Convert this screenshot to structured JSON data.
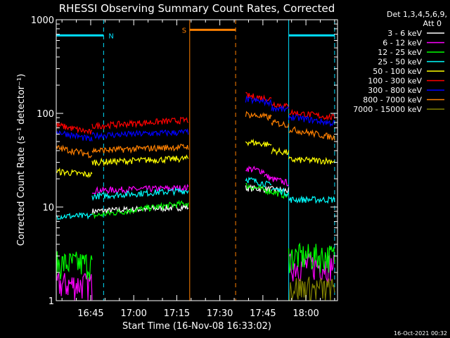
{
  "chart_data": {
    "type": "line",
    "title": "RHESSI Observing Summary Count Rates, Corrected",
    "xlabel": "Start Time (16-Nov-08 16:33:02)",
    "ylabel": "Corrected Count Rate (s⁻¹ detector⁻¹)",
    "x_range_minutes": [
      0,
      98
    ],
    "y_log": true,
    "ylim": [
      1,
      1000
    ],
    "x_ticks": [
      {
        "label": "16:45",
        "minute": 12
      },
      {
        "label": "17:00",
        "minute": 27
      },
      {
        "label": "17:15",
        "minute": 42
      },
      {
        "label": "17:30",
        "minute": 57
      },
      {
        "label": "17:45",
        "minute": 72
      },
      {
        "label": "18:00",
        "minute": 87
      }
    ],
    "y_ticks": [
      {
        "label": "1",
        "value": 1
      },
      {
        "label": "10",
        "value": 10
      },
      {
        "label": "100",
        "value": 100
      },
      {
        "label": "1000",
        "value": 1000
      }
    ],
    "legend_header": [
      "Det 1,3,4,5,6,9,",
      "Att 0"
    ],
    "footer_date": "16-Oct-2021 00:32",
    "intervals": [
      {
        "label": "N",
        "color": "#00e0ff",
        "level": 680,
        "segments": [
          [
            0,
            16.5
          ],
          [
            81,
            97
          ]
        ],
        "boundaries": [
          16.5,
          81,
          97
        ],
        "boundary_style": [
          "dashed",
          "solid",
          "dashed"
        ]
      },
      {
        "label": "S",
        "color": "#ff8000",
        "level": 780,
        "segments": [
          [
            46.5,
            62.5
          ]
        ],
        "boundaries": [
          46.5,
          62.5
        ],
        "boundary_style": [
          "solid",
          "dashed"
        ]
      }
    ],
    "gap": [
      46.5,
      66
    ],
    "series": [
      {
        "name": "3 - 6 keV",
        "color": "#ffffff",
        "shape": [
          {
            "range": [
              0,
              12.5
            ],
            "hidden": true
          },
          {
            "range": [
              12.5,
              46
            ],
            "start": 9,
            "end": 10
          },
          {
            "range": [
              66,
              81
            ],
            "start": 16,
            "end": 15
          },
          {
            "range": [
              81,
              97
            ],
            "hidden": true
          }
        ]
      },
      {
        "name": "6 - 12 keV",
        "color": "#ff00ff",
        "shape": [
          {
            "range": [
              0,
              12.5
            ],
            "start": 1.5,
            "end": 1.5
          },
          {
            "range": [
              12.5,
              46
            ],
            "start": 15,
            "end": 16
          },
          {
            "range": [
              66,
              72.5
            ],
            "start": 26,
            "end": 24
          },
          {
            "range": [
              72.5,
              75
            ],
            "start": 22,
            "end": 20
          },
          {
            "range": [
              75,
              81
            ],
            "start": 20,
            "end": 18
          },
          {
            "range": [
              81,
              97
            ],
            "start": 2.4,
            "end": 2.4
          }
        ]
      },
      {
        "name": "12 - 25 keV",
        "color": "#00ff00",
        "shape": [
          {
            "range": [
              0,
              12.5
            ],
            "start": 2.5,
            "end": 2.5
          },
          {
            "range": [
              12.5,
              46
            ],
            "start": 8,
            "end": 11
          },
          {
            "range": [
              66,
              81
            ],
            "start": 17,
            "end": 13
          },
          {
            "range": [
              81,
              97
            ],
            "start": 3,
            "end": 3
          }
        ]
      },
      {
        "name": "25 - 50 keV",
        "color": "#00ffff",
        "shape": [
          {
            "range": [
              0,
              12.5
            ],
            "start": 8,
            "end": 8
          },
          {
            "range": [
              12.5,
              46
            ],
            "start": 13,
            "end": 15
          },
          {
            "range": [
              66,
              75
            ],
            "start": 20,
            "end": 17
          },
          {
            "range": [
              75,
              81
            ],
            "start": 16,
            "end": 14
          },
          {
            "range": [
              81,
              97
            ],
            "start": 12,
            "end": 12
          }
        ]
      },
      {
        "name": "50 - 100 keV",
        "color": "#ffff00",
        "shape": [
          {
            "range": [
              0,
              12.5
            ],
            "start": 24,
            "end": 22
          },
          {
            "range": [
              12.5,
              46
            ],
            "start": 30,
            "end": 33
          },
          {
            "range": [
              66,
              75
            ],
            "start": 50,
            "end": 46
          },
          {
            "range": [
              75,
              81
            ],
            "start": 40,
            "end": 38
          },
          {
            "range": [
              81,
              97
            ],
            "start": 32,
            "end": 31
          }
        ]
      },
      {
        "name": "100 - 300 keV",
        "color": "#ff0000",
        "shape": [
          {
            "range": [
              0,
              12.5
            ],
            "start": 75,
            "end": 62
          },
          {
            "range": [
              12.5,
              46
            ],
            "start": 73,
            "end": 85
          },
          {
            "range": [
              66,
              75
            ],
            "start": 155,
            "end": 142
          },
          {
            "range": [
              75,
              81
            ],
            "start": 128,
            "end": 118
          },
          {
            "range": [
              81,
              97
            ],
            "start": 103,
            "end": 90
          }
        ]
      },
      {
        "name": "300 - 800 keV",
        "color": "#0000ff",
        "shape": [
          {
            "range": [
              0,
              12.5
            ],
            "start": 64,
            "end": 52
          },
          {
            "range": [
              12.5,
              46
            ],
            "start": 58,
            "end": 63
          },
          {
            "range": [
              66,
              75
            ],
            "start": 140,
            "end": 130
          },
          {
            "range": [
              75,
              81
            ],
            "start": 115,
            "end": 108
          },
          {
            "range": [
              81,
              97
            ],
            "start": 92,
            "end": 78
          }
        ]
      },
      {
        "name": "800 - 7000 keV",
        "color": "#ff8000",
        "shape": [
          {
            "range": [
              0,
              12.5
            ],
            "start": 43,
            "end": 36
          },
          {
            "range": [
              12.5,
              46
            ],
            "start": 40,
            "end": 44
          },
          {
            "range": [
              66,
              75
            ],
            "start": 98,
            "end": 90
          },
          {
            "range": [
              75,
              81
            ],
            "start": 80,
            "end": 75
          },
          {
            "range": [
              81,
              97
            ],
            "start": 68,
            "end": 55
          }
        ]
      },
      {
        "name": "7000 - 15000 keV",
        "color": "#808000",
        "shape": [
          {
            "range": [
              0,
              81
            ],
            "hidden": true
          },
          {
            "range": [
              81,
              97
            ],
            "start": 1.4,
            "end": 1.3
          }
        ]
      }
    ]
  }
}
